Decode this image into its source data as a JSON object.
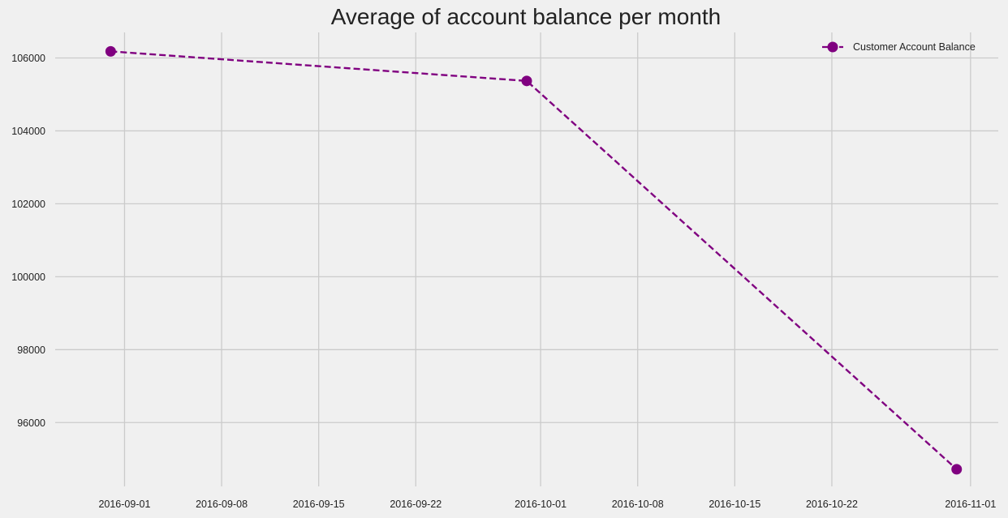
{
  "chart_data": {
    "type": "line",
    "title": "Average of account balance per month",
    "xlabel": "",
    "ylabel": "",
    "x_type": "date",
    "x_ticks": [
      "2016-09-01",
      "2016-09-08",
      "2016-09-15",
      "2016-09-22",
      "2016-10-01",
      "2016-10-08",
      "2016-10-15",
      "2016-10-22",
      "2016-11-01"
    ],
    "y_ticks": [
      96000,
      98000,
      100000,
      102000,
      104000,
      106000
    ],
    "xlim": [
      "2016-08-27",
      "2016-11-03"
    ],
    "ylim": [
      94250,
      106700
    ],
    "grid": true,
    "legend_position": "top-right",
    "series": [
      {
        "name": "Customer Account Balance",
        "color": "#800080",
        "line_style": "dashed",
        "marker": "circle",
        "x": [
          "2016-08-31",
          "2016-09-30",
          "2016-10-31"
        ],
        "y": [
          106180,
          105370,
          94720
        ]
      }
    ]
  }
}
